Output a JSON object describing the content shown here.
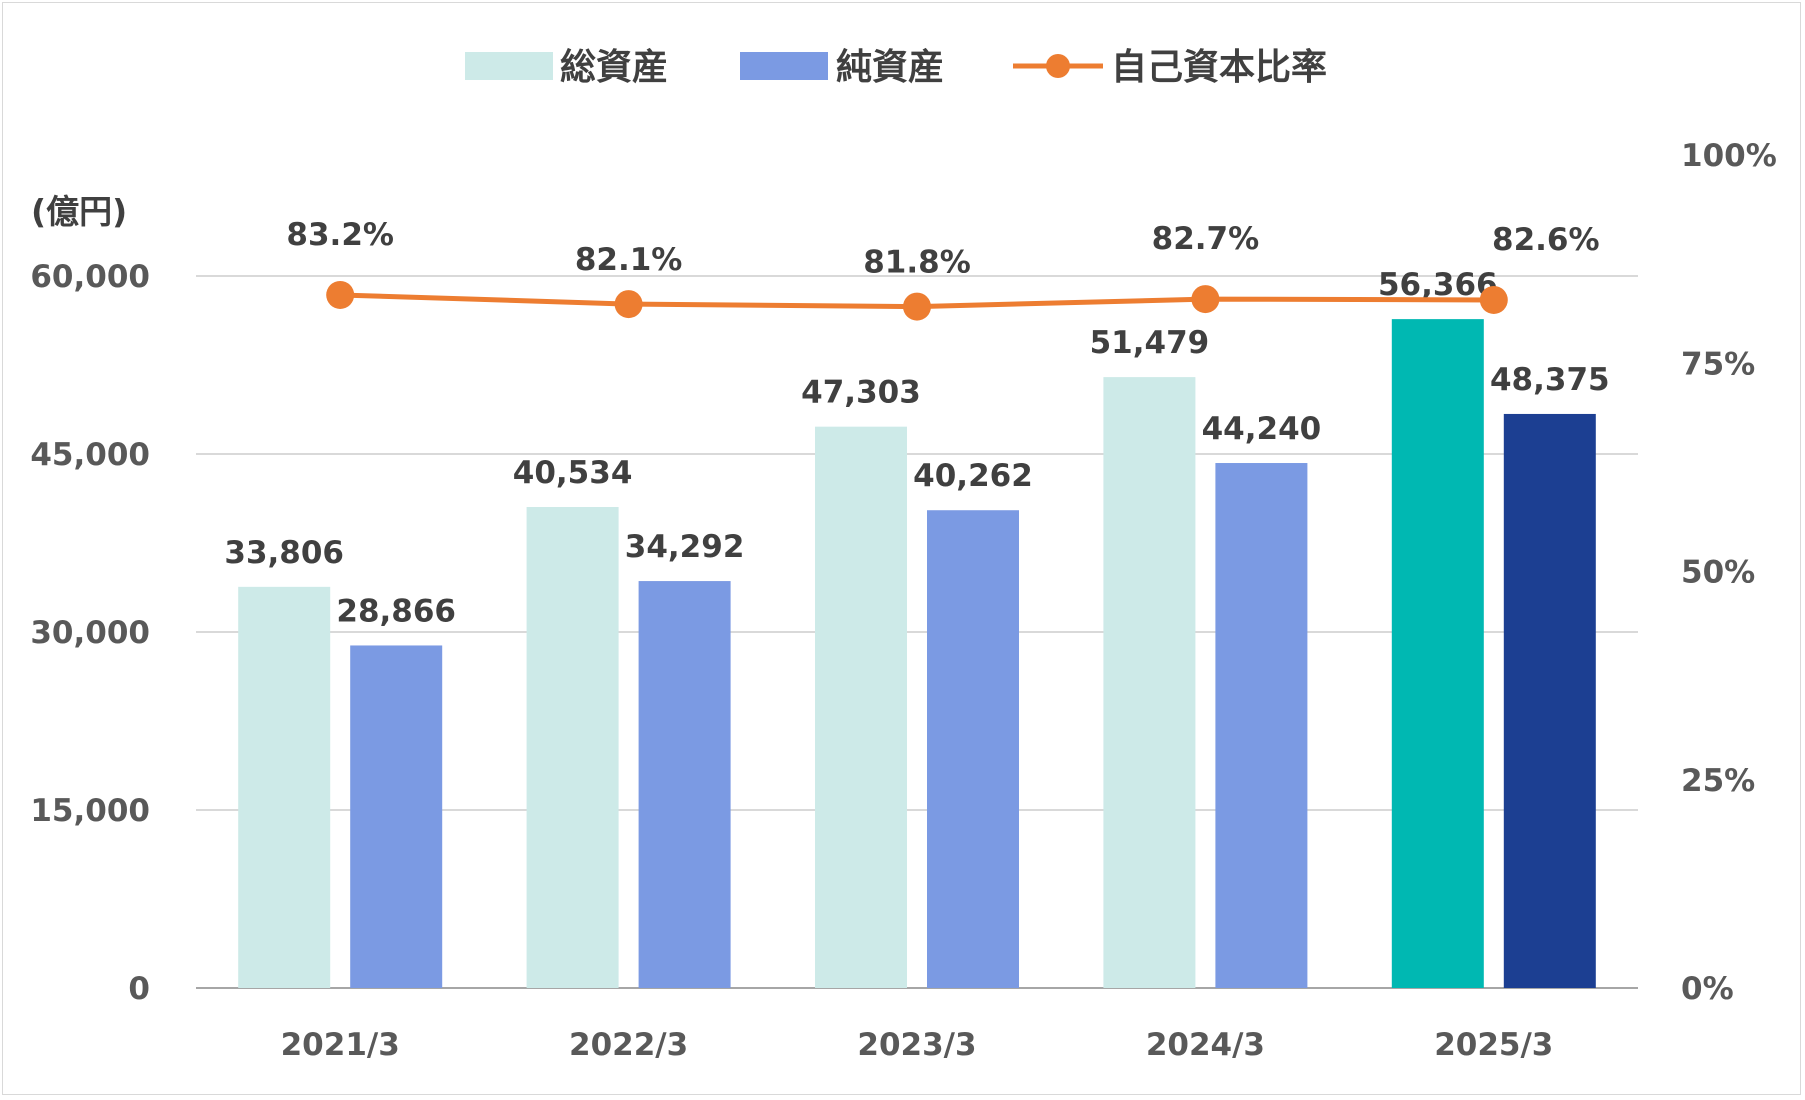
{
  "chart_data": {
    "type": "bar",
    "categories": [
      "2021/3",
      "2022/3",
      "2023/3",
      "2024/3",
      "2025/3"
    ],
    "series": [
      {
        "name": "総資産",
        "kind": "bar",
        "axis": "left",
        "values": [
          33806,
          40534,
          47303,
          51479,
          56366
        ],
        "labels": [
          "33,806",
          "40,534",
          "47,303",
          "51,479",
          "56,366"
        ],
        "color": "#cdeae8",
        "highlight_color": "#00b8b2"
      },
      {
        "name": "純資産",
        "kind": "bar",
        "axis": "left",
        "values": [
          28866,
          34292,
          40262,
          44240,
          48375
        ],
        "labels": [
          "28,866",
          "34,292",
          "40,262",
          "44,240",
          "48,375"
        ],
        "color": "#7b9ae3",
        "highlight_color": "#1c3f92"
      },
      {
        "name": "自己資本比率",
        "kind": "line",
        "axis": "right",
        "values": [
          83.2,
          82.1,
          81.8,
          82.7,
          82.6
        ],
        "labels": [
          "83.2%",
          "82.1%",
          "81.8%",
          "82.7%",
          "82.6%"
        ],
        "color": "#ed7d31"
      }
    ],
    "y_left": {
      "unit_label": "(億円)",
      "ylim": [
        0,
        60000
      ],
      "ticks": [
        0,
        15000,
        30000,
        45000,
        60000
      ],
      "tick_labels": [
        "0",
        "15,000",
        "30,000",
        "45,000",
        "60,000"
      ]
    },
    "y_right": {
      "ylim": [
        0,
        100
      ],
      "ticks": [
        0,
        25,
        50,
        75,
        100
      ],
      "tick_labels": [
        "0%",
        "25%",
        "50%",
        "75%",
        "100%"
      ]
    },
    "highlight_category": "2025/3",
    "grid": true,
    "legend_position": "top-center"
  }
}
